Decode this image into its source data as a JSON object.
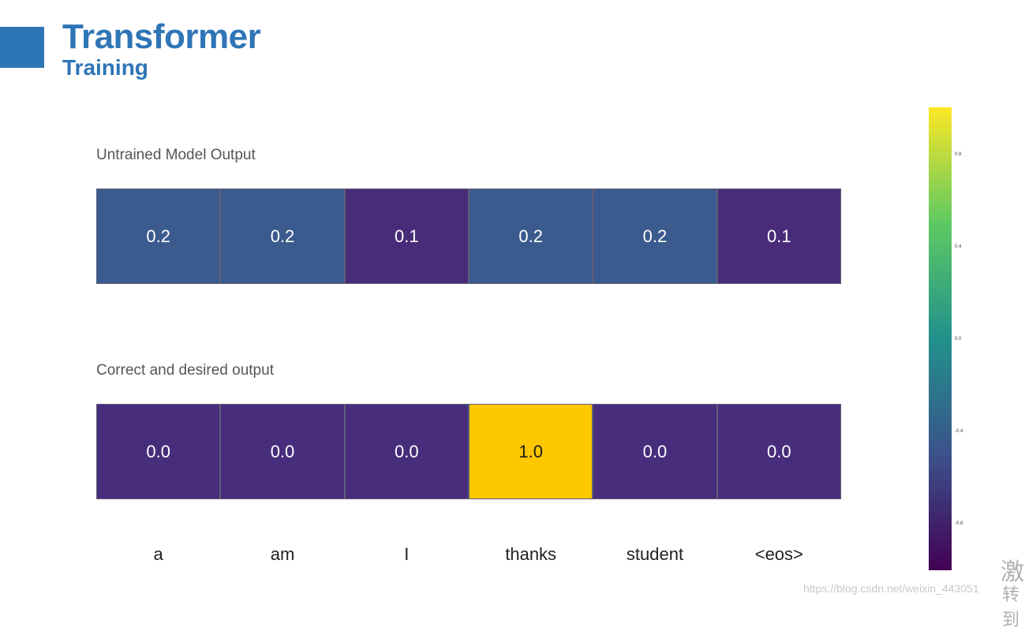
{
  "header": {
    "title": "Transformer",
    "subtitle": "Training",
    "accent_color": "#2e75b6"
  },
  "untrained": {
    "label": "Untrained Model Output",
    "cells": [
      {
        "value": "0.2",
        "color": "#3b5b8e"
      },
      {
        "value": "0.2",
        "color": "#3b5b8e"
      },
      {
        "value": "0.1",
        "color": "#482c7a"
      },
      {
        "value": "0.2",
        "color": "#3b5b8e"
      },
      {
        "value": "0.2",
        "color": "#3b5b8e"
      },
      {
        "value": "0.1",
        "color": "#482c7a"
      }
    ]
  },
  "desired": {
    "label": "Correct and desired output",
    "cells": [
      {
        "value": "0.0",
        "color": "#472d7b"
      },
      {
        "value": "0.0",
        "color": "#472d7b"
      },
      {
        "value": "0.0",
        "color": "#472d7b"
      },
      {
        "value": "1.0",
        "color": "#fdc800"
      },
      {
        "value": "0.0",
        "color": "#472d7b"
      },
      {
        "value": "0.0",
        "color": "#472d7b"
      }
    ]
  },
  "tokens": [
    "a",
    "am",
    "I",
    "thanks",
    "student",
    "<eos>"
  ],
  "colorbar": {
    "ticks": [
      "0.8",
      "0.4",
      "0.0",
      "-0.4",
      "-0.8"
    ],
    "gradient": [
      "#fde725",
      "#5ec962",
      "#21918c",
      "#3b528b",
      "#440154"
    ]
  },
  "watermark": {
    "url_text": "https://blog.csdn.net/weixin_443051",
    "cjk_1": "激",
    "cjk_2": "转到"
  }
}
